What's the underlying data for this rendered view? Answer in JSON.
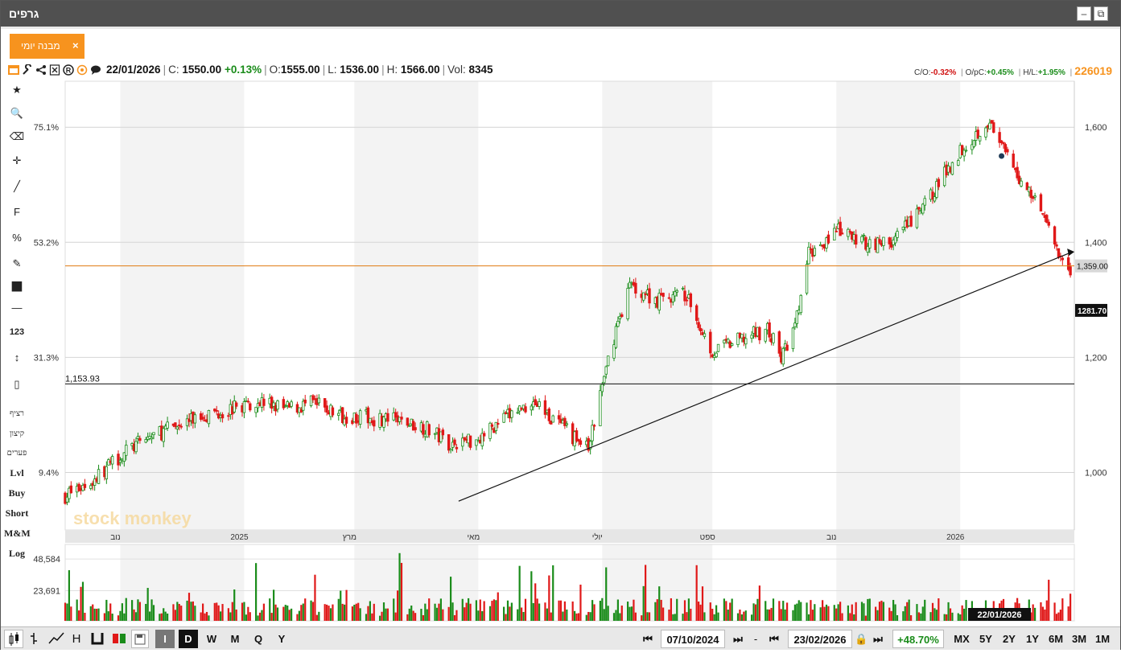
{
  "window": {
    "title": "גרפים",
    "minimize_glyph": "–",
    "popout_glyph": "⧉"
  },
  "tab": {
    "label": "מבנה יומי",
    "close_glyph": "×"
  },
  "quote": {
    "date": "22/01/2026",
    "close_label": "C:",
    "close": "1550.00",
    "change": "+0.13%",
    "open_label": "O:",
    "open": "1555.00",
    "low_label": "L:",
    "low": "1536.00",
    "high_label": "H:",
    "high": "1566.00",
    "vol_label": "Vol:",
    "vol": "8345"
  },
  "ratios": {
    "co_label": "C/O:",
    "co": "-0.32%",
    "opc_label": "O/pC:",
    "opc": "+0.45%",
    "hl_label": "H/L:",
    "hl": "+1.95%",
    "security_id": "226019"
  },
  "toolbar_icons": [
    "chart-type-icon",
    "settings-wrench-icon",
    "share-icon",
    "excel-export-icon",
    "registered-icon",
    "target-icon",
    "comment-icon"
  ],
  "left_tools": [
    {
      "name": "favorite-star-icon",
      "glyph": "★"
    },
    {
      "name": "zoom-icon",
      "glyph": "🔍"
    },
    {
      "name": "eraser-icon",
      "glyph": "⌫"
    },
    {
      "name": "crosshair-icon",
      "glyph": "✛"
    },
    {
      "name": "draw-line-icon",
      "glyph": "╱"
    },
    {
      "name": "fibonacci-icon",
      "glyph": "F"
    },
    {
      "name": "percent-icon",
      "glyph": "%"
    },
    {
      "name": "edit-icon",
      "glyph": "✎"
    },
    {
      "name": "color-swatch-icon",
      "glyph": "■"
    },
    {
      "name": "line-style-icon",
      "glyph": "—"
    },
    {
      "name": "measure-icon",
      "glyph": "123"
    },
    {
      "name": "vertical-range-icon",
      "glyph": "↕"
    },
    {
      "name": "candle-settings-icon",
      "glyph": "▯"
    },
    {
      "name": "tool-continuous",
      "glyph": "רציף"
    },
    {
      "name": "tool-extreme",
      "glyph": "קיצון"
    },
    {
      "name": "tool-gaps",
      "glyph": "פערים"
    },
    {
      "name": "tool-lvl",
      "glyph": "Lvl"
    },
    {
      "name": "tool-buy",
      "glyph": "Buy"
    },
    {
      "name": "tool-short",
      "glyph": "Short"
    },
    {
      "name": "tool-mm",
      "glyph": "M&M"
    },
    {
      "name": "tool-log",
      "glyph": "Log"
    }
  ],
  "chart_data": {
    "type": "candlestick",
    "watermark": "stock monkey",
    "y_axis_right": {
      "min": 900,
      "max": 1680,
      "ticks": [
        "1,000",
        "1,200",
        "1,400",
        "1,600"
      ],
      "tick_values": [
        1000,
        1200,
        1400,
        1600
      ]
    },
    "y_axis_left_pct": {
      "ticks": [
        "9.4%",
        "31.3%",
        "53.2%",
        "75.1%"
      ],
      "tick_values": [
        1000,
        1200,
        1400,
        1600
      ]
    },
    "x_labels": [
      "נוב",
      "2025",
      "מרץ",
      "מאי",
      "יולי",
      "ספט",
      "נוב",
      "2026"
    ],
    "price_label_current": "1,359.00",
    "price_label_level": "1281.70",
    "horizontal_lines": [
      {
        "value": 1359.0,
        "color": "#e07a10"
      },
      {
        "value": 1153.93,
        "label": "1,153.93",
        "color": "#111111"
      }
    ],
    "trendline": {
      "from": {
        "date": "2025-04-25",
        "value": 950
      },
      "to": {
        "date": "2026-03-02",
        "value": 1382
      }
    },
    "close_path": [
      [
        "2024-10-07",
        960
      ],
      [
        "2024-10-21",
        985
      ],
      [
        "2024-11-04",
        1030
      ],
      [
        "2024-11-18",
        1060
      ],
      [
        "2024-12-02",
        1080
      ],
      [
        "2024-12-16",
        1100
      ],
      [
        "2024-12-30",
        1110
      ],
      [
        "2025-01-13",
        1125
      ],
      [
        "2025-01-27",
        1110
      ],
      [
        "2025-02-10",
        1120
      ],
      [
        "2025-02-24",
        1100
      ],
      [
        "2025-03-10",
        1095
      ],
      [
        "2025-03-24",
        1090
      ],
      [
        "2025-04-07",
        1080
      ],
      [
        "2025-04-21",
        1050
      ],
      [
        "2025-05-05",
        1060
      ],
      [
        "2025-05-19",
        1095
      ],
      [
        "2025-06-02",
        1125
      ],
      [
        "2025-06-16",
        1080
      ],
      [
        "2025-06-30",
        1040
      ],
      [
        "2025-07-07",
        1150
      ],
      [
        "2025-07-14",
        1250
      ],
      [
        "2025-07-21",
        1325
      ],
      [
        "2025-08-04",
        1300
      ],
      [
        "2025-08-18",
        1310
      ],
      [
        "2025-09-01",
        1210
      ],
      [
        "2025-09-15",
        1230
      ],
      [
        "2025-09-29",
        1250
      ],
      [
        "2025-10-06",
        1200
      ],
      [
        "2025-10-13",
        1250
      ],
      [
        "2025-10-20",
        1380
      ],
      [
        "2025-11-03",
        1420
      ],
      [
        "2025-11-17",
        1400
      ],
      [
        "2025-12-01",
        1400
      ],
      [
        "2025-12-15",
        1450
      ],
      [
        "2026-01-05",
        1560
      ],
      [
        "2026-01-19",
        1610
      ],
      [
        "2026-02-02",
        1520
      ],
      [
        "2026-02-16",
        1460
      ],
      [
        "2026-02-23",
        1380
      ],
      [
        "2026-03-02",
        1355
      ]
    ],
    "marker_point": {
      "date": "2026-01-26",
      "value": 1550
    },
    "volume_axis": {
      "ticks": [
        "48,584",
        "23,691"
      ],
      "tick_values": [
        48584,
        23691
      ],
      "max": 60000
    },
    "volume_date_badge": "22/01/2026"
  },
  "bottom": {
    "chart_types": [
      "candles-icon",
      "ohlc-icon",
      "line-icon"
    ],
    "h_label": "H",
    "intervals": [
      "I",
      "D",
      "W",
      "M",
      "Q",
      "Y"
    ],
    "start_date": "07/10/2024",
    "end_date": "23/02/2026",
    "dash": "-",
    "range_change": "+48.70%",
    "ranges": [
      "MX",
      "5Y",
      "2Y",
      "1Y",
      "6M",
      "3M",
      "1M"
    ]
  },
  "colors": {
    "up": "#1a8c1a",
    "down": "#e01818",
    "accent": "#f7931e",
    "header": "#505050"
  }
}
